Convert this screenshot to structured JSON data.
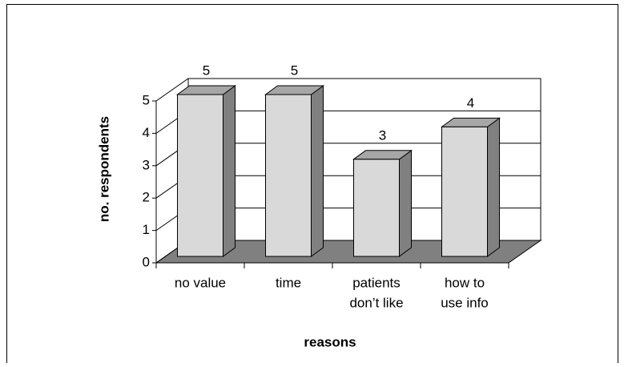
{
  "chart_data": {
    "type": "bar3d",
    "y_label": "no. respondents",
    "x_label": "reasons",
    "categories": [
      [
        "no value"
      ],
      [
        "time"
      ],
      [
        "patients",
        "don’t like"
      ],
      [
        "how to",
        "use info"
      ]
    ],
    "values": [
      5,
      5,
      3,
      4
    ],
    "color": "#d9d9d9",
    "ylim": [
      0,
      5
    ],
    "yticks": [
      0,
      1,
      2,
      3,
      4,
      5
    ],
    "grid": true
  }
}
